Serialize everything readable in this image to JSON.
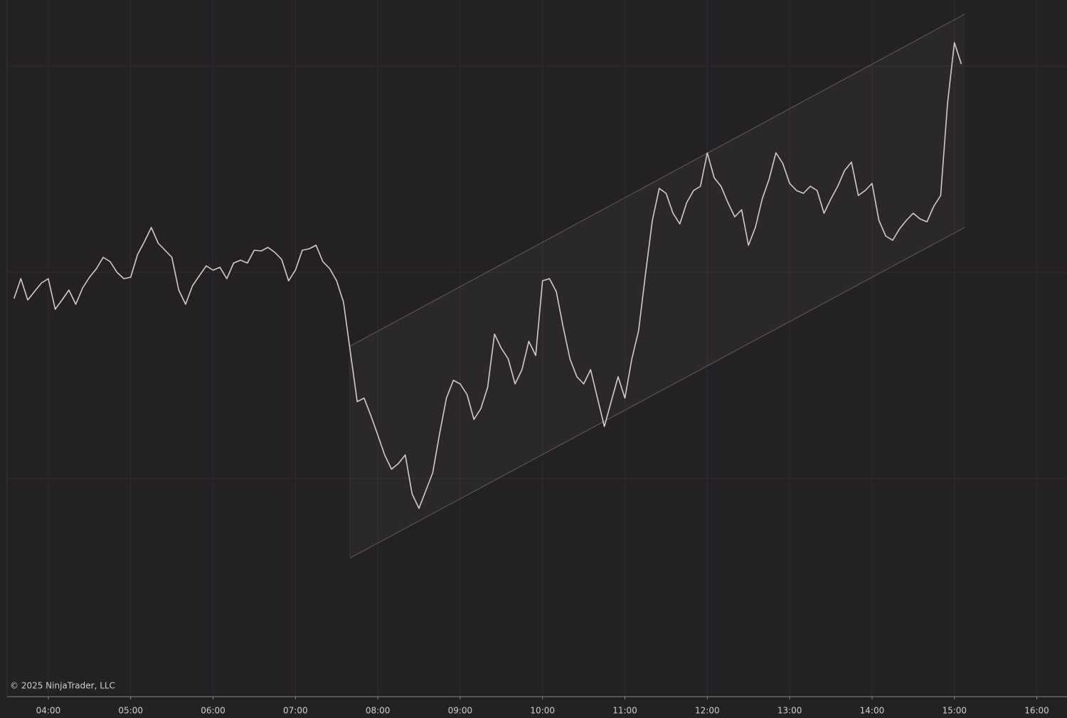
{
  "chart_data": {
    "type": "line",
    "annotation": "© 2025 NinjaTrader, LLC",
    "color": "#d9c9cc",
    "grid": true,
    "xlim": [
      210,
      982
    ],
    "ylim": [
      20,
      1000
    ],
    "xticks": [
      {
        "value": 240,
        "label": "04:00"
      },
      {
        "value": 300,
        "label": "05:00"
      },
      {
        "value": 360,
        "label": "06:00"
      },
      {
        "value": 420,
        "label": "07:00"
      },
      {
        "value": 480,
        "label": "08:00"
      },
      {
        "value": 540,
        "label": "09:00"
      },
      {
        "value": 600,
        "label": "10:00"
      },
      {
        "value": 660,
        "label": "11:00"
      },
      {
        "value": 720,
        "label": "12:00"
      },
      {
        "value": 780,
        "label": "13:00"
      },
      {
        "value": 840,
        "label": "14:00"
      },
      {
        "value": 900,
        "label": "15:00"
      },
      {
        "value": 960,
        "label": "16:00"
      }
    ],
    "x": [
      215,
      220,
      225,
      230,
      235,
      240,
      245,
      250,
      255,
      260,
      265,
      270,
      275,
      280,
      285,
      290,
      295,
      300,
      305,
      310,
      315,
      320,
      325,
      330,
      335,
      340,
      345,
      350,
      355,
      360,
      365,
      370,
      375,
      380,
      385,
      390,
      395,
      400,
      405,
      410,
      415,
      420,
      425,
      430,
      435,
      440,
      445,
      450,
      455,
      460,
      465,
      470,
      475,
      480,
      485,
      490,
      495,
      500,
      505,
      510,
      515,
      520,
      525,
      530,
      535,
      540,
      545,
      550,
      555,
      560,
      565,
      570,
      575,
      580,
      585,
      590,
      595,
      600,
      605,
      610,
      615,
      620,
      625,
      630,
      635,
      640,
      645,
      650,
      655,
      660,
      665,
      670,
      675,
      680,
      685,
      690,
      695,
      700,
      705,
      710,
      715,
      720,
      725,
      730,
      735,
      740,
      745,
      750,
      755,
      760,
      765,
      770,
      775,
      780,
      785,
      790,
      795,
      800,
      805,
      810,
      815,
      820,
      825,
      830,
      835,
      840,
      845,
      850,
      855,
      860,
      865,
      870,
      875,
      880,
      885,
      890,
      895,
      900,
      905
    ],
    "values": [
      580,
      608,
      578,
      590,
      602,
      608,
      565,
      578,
      592,
      572,
      595,
      610,
      622,
      638,
      632,
      617,
      608,
      610,
      642,
      660,
      680,
      658,
      648,
      638,
      592,
      572,
      598,
      612,
      626,
      620,
      624,
      608,
      630,
      634,
      630,
      648,
      647,
      652,
      645,
      635,
      605,
      620,
      648,
      650,
      655,
      632,
      622,
      605,
      575,
      505,
      435,
      440,
      415,
      388,
      360,
      340,
      348,
      360,
      305,
      285,
      310,
      335,
      390,
      440,
      465,
      460,
      445,
      410,
      425,
      455,
      530,
      510,
      495,
      460,
      480,
      520,
      500,
      605,
      608,
      590,
      540,
      495,
      470,
      460,
      480,
      440,
      400,
      435,
      470,
      440,
      495,
      535,
      615,
      690,
      735,
      728,
      700,
      685,
      715,
      732,
      738,
      785,
      750,
      738,
      715,
      695,
      705,
      655,
      680,
      720,
      748,
      785,
      770,
      742,
      732,
      728,
      738,
      732,
      700,
      720,
      738,
      760,
      772,
      725,
      732,
      742,
      690,
      668,
      662,
      678,
      690,
      700,
      692,
      688,
      710,
      725,
      855,
      940,
      910
    ]
  }
}
